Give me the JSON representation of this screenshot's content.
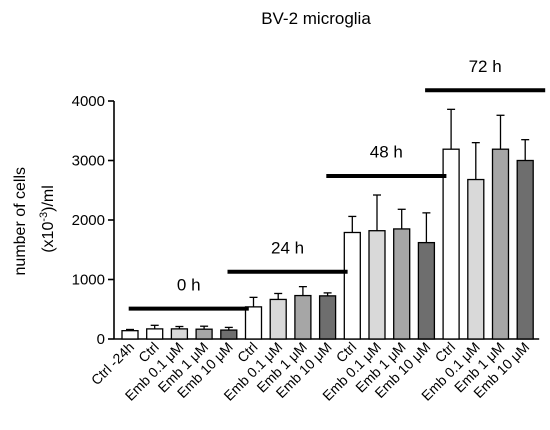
{
  "chart_data": {
    "type": "bar",
    "title": "BV-2 microglia",
    "ylabel_line1": "number of cells",
    "ylabel_line2_pre": "(x10",
    "ylabel_line2_sup": "-3",
    "ylabel_line2_post": ")/ml",
    "ylim": [
      0,
      4000
    ],
    "yticks": [
      "0",
      "1000",
      "2000",
      "3000",
      "4000"
    ],
    "ytick_values": [
      0,
      1000,
      2000,
      3000,
      4000
    ],
    "categories": [
      "Ctrl -24h",
      "Ctrl",
      "Emb 0.1 μM",
      "Emb 1 μM",
      "Emb 10 μM",
      "Ctrl",
      "Emb 0.1 μM",
      "Emb 1 μM",
      "Emb 10 μM",
      "Ctrl",
      "Emb 0.1 μM",
      "Emb 1 μM",
      "Emb 10 μM",
      "Ctrl",
      "Emb 0.1 μM",
      "Emb 1 μM",
      "Emb 10 μM"
    ],
    "values": [
      140,
      170,
      170,
      165,
      150,
      540,
      665,
      730,
      725,
      1790,
      1820,
      1850,
      1620,
      3190,
      2680,
      3190,
      3000
    ],
    "errors": [
      20,
      60,
      40,
      50,
      45,
      160,
      100,
      150,
      50,
      270,
      600,
      330,
      500,
      670,
      620,
      570,
      350
    ],
    "bar_colors": [
      "#ffffff",
      "#ffffff",
      "#d9d9d9",
      "#a6a6a6",
      "#6e6e6e",
      "#ffffff",
      "#d9d9d9",
      "#a6a6a6",
      "#6e6e6e",
      "#ffffff",
      "#d9d9d9",
      "#a6a6a6",
      "#6e6e6e",
      "#ffffff",
      "#d9d9d9",
      "#a6a6a6",
      "#6e6e6e"
    ],
    "groups": [
      {
        "label": "0 h",
        "first": 1,
        "last": 4,
        "line_value": 510,
        "label_value": 920
      },
      {
        "label": "24 h",
        "first": 5,
        "last": 8,
        "line_value": 1130,
        "label_value": 1540
      },
      {
        "label": "48 h",
        "first": 9,
        "last": 12,
        "line_value": 2740,
        "label_value": 3150
      },
      {
        "label": "72 h",
        "first": 13,
        "last": 16,
        "line_value": 4180,
        "label_value": 4590
      }
    ]
  }
}
